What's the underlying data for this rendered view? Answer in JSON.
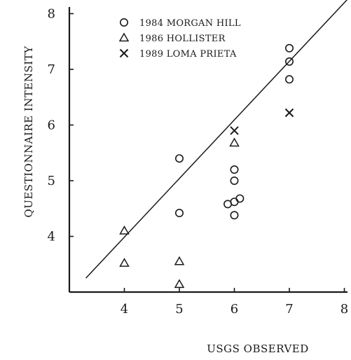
{
  "chart_data": {
    "type": "scatter",
    "xlabel": "USGS OBSERVED",
    "ylabel": "QUESTIONNAIRE INTENSITY",
    "xlim": [
      3,
      8
    ],
    "ylim": [
      3,
      8
    ],
    "x_ticks": [
      "4",
      "5",
      "6",
      "7",
      "8"
    ],
    "y_ticks": [
      "4",
      "5",
      "6",
      "7",
      "8"
    ],
    "legend_position": "top-left",
    "series": [
      {
        "name": "1984 MORGAN HILL",
        "marker": "circle",
        "points": [
          [
            5,
            5.4
          ],
          [
            5,
            4.42
          ],
          [
            5.88,
            4.58
          ],
          [
            6,
            4.62
          ],
          [
            6,
            4.38
          ],
          [
            6.1,
            4.68
          ],
          [
            6,
            5.0
          ],
          [
            6,
            5.2
          ],
          [
            7,
            7.38
          ],
          [
            7,
            7.14
          ],
          [
            7,
            6.82
          ]
        ]
      },
      {
        "name": "1986 HOLLISTER",
        "marker": "triangle",
        "points": [
          [
            4,
            4.1
          ],
          [
            4,
            3.52
          ],
          [
            5,
            3.55
          ],
          [
            5,
            3.14
          ],
          [
            6,
            5.68
          ]
        ]
      },
      {
        "name": "1989 LOMA PRIETA",
        "marker": "x",
        "points": [
          [
            6,
            5.9
          ],
          [
            7,
            6.22
          ]
        ]
      }
    ],
    "fit_line": {
      "from": [
        3.3,
        3.25
      ],
      "to": [
        8.05,
        8.25
      ]
    }
  },
  "colors": {
    "ink": "#1a1a1a",
    "background": "#ffffff"
  }
}
